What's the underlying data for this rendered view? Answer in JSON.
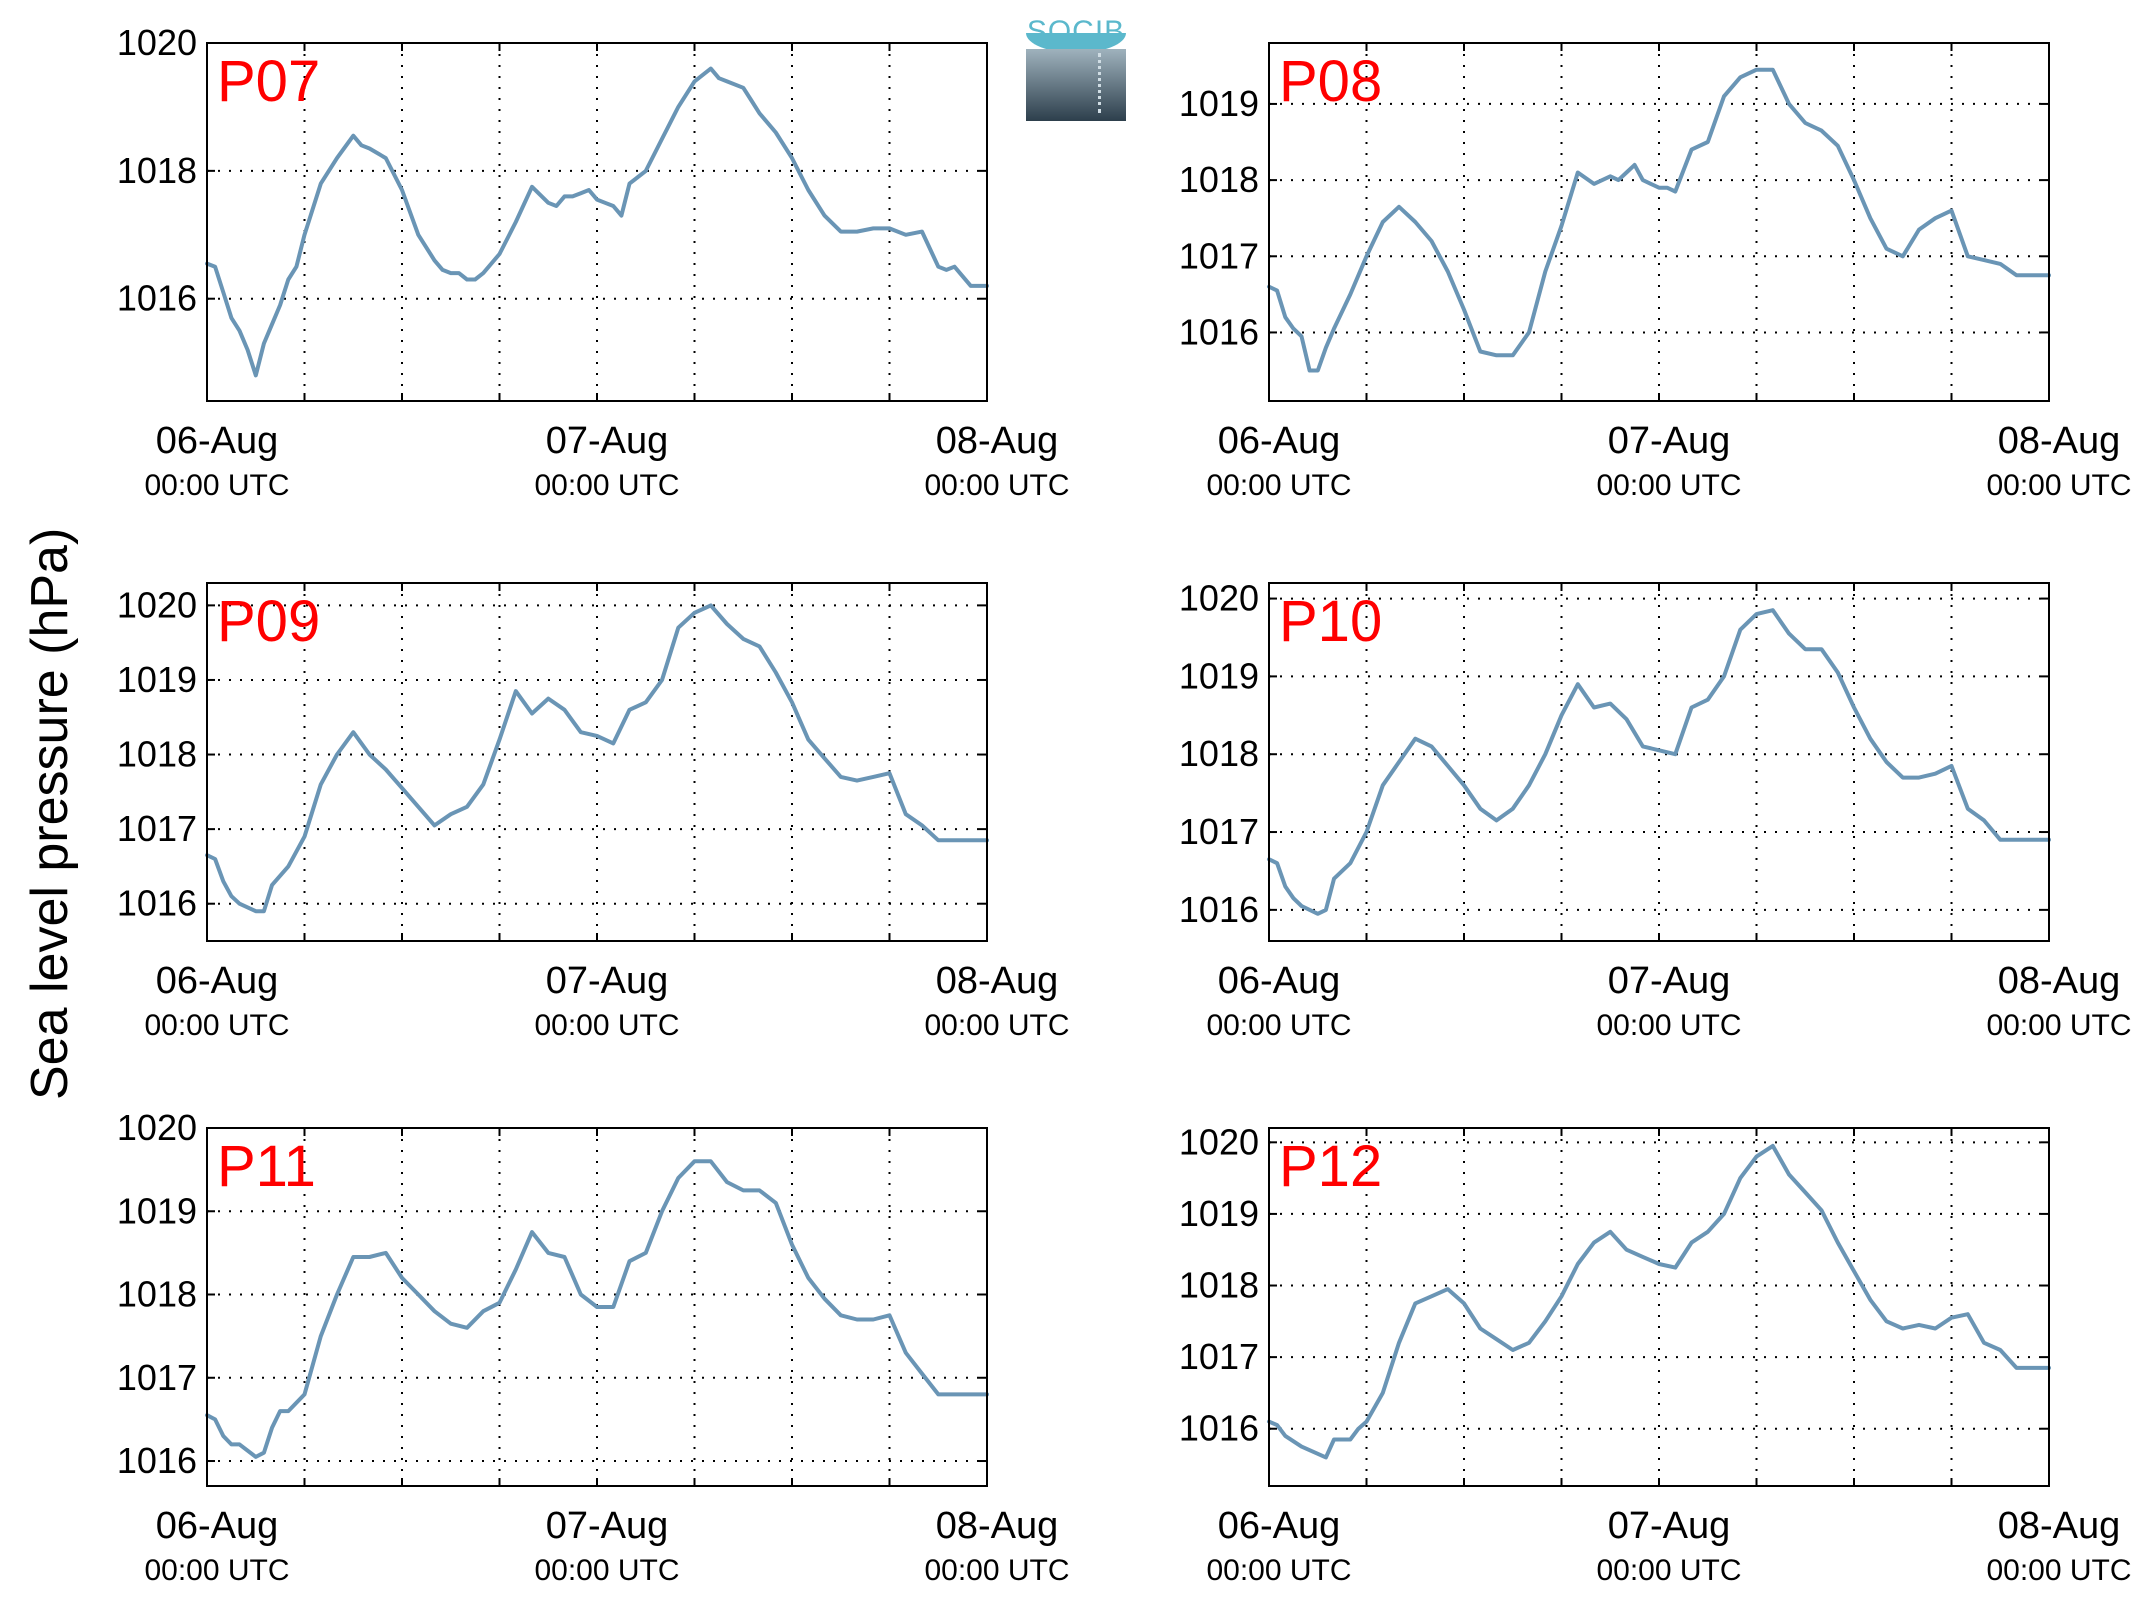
{
  "ylabel": "Sea level pressure (hPa)",
  "logo_text": "SOCIB",
  "colors": {
    "line": "#6a95b5",
    "panel_label": "#ff0000",
    "grid": "#000000"
  },
  "chart_data": [
    {
      "type": "line",
      "label": "P07",
      "xlim": [
        0,
        48
      ],
      "ylim": [
        1014.4,
        1020
      ],
      "yticks": [
        1016,
        1018,
        1020
      ],
      "xticks": [
        {
          "major": "06-Aug",
          "minor": "00:00 UTC"
        },
        {
          "major": "07-Aug",
          "minor": "00:00 UTC"
        },
        {
          "major": "08-Aug",
          "minor": "00:00 UTC"
        }
      ],
      "x": [
        0,
        0.5,
        1,
        1.5,
        2,
        2.5,
        3,
        3.5,
        4,
        4.5,
        5,
        5.5,
        6,
        7,
        8,
        9,
        9.5,
        10,
        11,
        12,
        13,
        14,
        14.5,
        15,
        15.5,
        16,
        16.5,
        17,
        18,
        19,
        20,
        21,
        21.5,
        22,
        22.5,
        23,
        23.5,
        24,
        24.5,
        25,
        25.5,
        26,
        27,
        28,
        29,
        30,
        31,
        31.5,
        32,
        33,
        33.5,
        34,
        35,
        36,
        37,
        38,
        39,
        40,
        41,
        42,
        43,
        44,
        45,
        45.5,
        46,
        47,
        48
      ],
      "values": [
        1016.55,
        1016.5,
        1016.1,
        1015.7,
        1015.5,
        1015.2,
        1014.8,
        1015.3,
        1015.6,
        1015.9,
        1016.3,
        1016.5,
        1017.0,
        1017.8,
        1018.2,
        1018.55,
        1018.4,
        1018.35,
        1018.2,
        1017.7,
        1017.0,
        1016.6,
        1016.45,
        1016.4,
        1016.4,
        1016.3,
        1016.3,
        1016.4,
        1016.7,
        1017.2,
        1017.75,
        1017.5,
        1017.45,
        1017.6,
        1017.6,
        1017.65,
        1017.7,
        1017.55,
        1017.5,
        1017.45,
        1017.3,
        1017.8,
        1018.0,
        1018.5,
        1019.0,
        1019.4,
        1019.6,
        1019.45,
        1019.4,
        1019.3,
        1019.1,
        1018.9,
        1018.6,
        1018.2,
        1017.7,
        1017.3,
        1017.05,
        1017.05,
        1017.1,
        1017.1,
        1017.0,
        1017.05,
        1016.5,
        1016.45,
        1016.5,
        1016.2,
        1016.2
      ]
    },
    {
      "type": "line",
      "label": "P08",
      "xlim": [
        0,
        48
      ],
      "ylim": [
        1015.1,
        1019.8
      ],
      "yticks": [
        1016,
        1017,
        1018,
        1019
      ],
      "xticks": [
        {
          "major": "06-Aug",
          "minor": "00:00 UTC"
        },
        {
          "major": "07-Aug",
          "minor": "00:00 UTC"
        },
        {
          "major": "08-Aug",
          "minor": "00:00 UTC"
        }
      ],
      "x": [
        0,
        0.5,
        1,
        1.5,
        2,
        2.5,
        3,
        3.5,
        4,
        5,
        6,
        7,
        8,
        9,
        10,
        11,
        12,
        13,
        14,
        15,
        16,
        17,
        18,
        19,
        20,
        21,
        21.5,
        22,
        22.5,
        23,
        23.5,
        24,
        24.5,
        25,
        26,
        27,
        28,
        29,
        30,
        31,
        32,
        33,
        34,
        35,
        36,
        37,
        38,
        39,
        40,
        41,
        42,
        43,
        44,
        45,
        46,
        47,
        48
      ],
      "values": [
        1016.6,
        1016.55,
        1016.2,
        1016.05,
        1015.95,
        1015.5,
        1015.5,
        1015.8,
        1016.05,
        1016.5,
        1017.0,
        1017.45,
        1017.65,
        1017.45,
        1017.2,
        1016.8,
        1016.3,
        1015.75,
        1015.7,
        1015.7,
        1016.0,
        1016.8,
        1017.4,
        1018.1,
        1017.95,
        1018.05,
        1018.0,
        1018.1,
        1018.2,
        1018.0,
        1017.95,
        1017.9,
        1017.9,
        1017.85,
        1018.4,
        1018.5,
        1019.1,
        1019.35,
        1019.45,
        1019.45,
        1019.0,
        1018.75,
        1018.65,
        1018.45,
        1018.0,
        1017.5,
        1017.1,
        1017.0,
        1017.35,
        1017.5,
        1017.6,
        1017.0,
        1016.95,
        1016.9,
        1016.75,
        1016.75,
        1016.75
      ]
    },
    {
      "type": "line",
      "label": "P09",
      "xlim": [
        0,
        48
      ],
      "ylim": [
        1015.5,
        1020.3
      ],
      "yticks": [
        1016,
        1017,
        1018,
        1019,
        1020
      ],
      "xticks": [
        {
          "major": "06-Aug",
          "minor": "00:00 UTC"
        },
        {
          "major": "07-Aug",
          "minor": "00:00 UTC"
        },
        {
          "major": "08-Aug",
          "minor": "00:00 UTC"
        }
      ],
      "x": [
        0,
        0.5,
        1,
        1.5,
        2,
        3,
        3.5,
        4,
        5,
        6,
        7,
        8,
        9,
        10,
        11,
        12,
        13,
        14,
        15,
        16,
        17,
        18,
        19,
        20,
        21,
        22,
        23,
        24,
        25,
        26,
        27,
        28,
        29,
        30,
        31,
        32,
        33,
        34,
        35,
        36,
        37,
        38,
        39,
        40,
        41,
        42,
        43,
        44,
        45,
        46,
        47,
        48
      ],
      "values": [
        1016.65,
        1016.6,
        1016.3,
        1016.1,
        1016.0,
        1015.9,
        1015.9,
        1016.25,
        1016.5,
        1016.9,
        1017.6,
        1018.0,
        1018.3,
        1018.0,
        1017.8,
        1017.55,
        1017.3,
        1017.05,
        1017.2,
        1017.3,
        1017.6,
        1018.2,
        1018.85,
        1018.55,
        1018.75,
        1018.6,
        1018.3,
        1018.25,
        1018.15,
        1018.6,
        1018.7,
        1019.0,
        1019.7,
        1019.9,
        1020.0,
        1019.75,
        1019.55,
        1019.45,
        1019.1,
        1018.7,
        1018.2,
        1017.95,
        1017.7,
        1017.65,
        1017.7,
        1017.75,
        1017.2,
        1017.05,
        1016.85,
        1016.85,
        1016.85,
        1016.85
      ]
    },
    {
      "type": "line",
      "label": "P10",
      "xlim": [
        0,
        48
      ],
      "ylim": [
        1015.6,
        1020.2
      ],
      "yticks": [
        1016,
        1017,
        1018,
        1019,
        1020
      ],
      "xticks": [
        {
          "major": "06-Aug",
          "minor": "00:00 UTC"
        },
        {
          "major": "07-Aug",
          "minor": "00:00 UTC"
        },
        {
          "major": "08-Aug",
          "minor": "00:00 UTC"
        }
      ],
      "x": [
        0,
        0.5,
        1,
        1.5,
        2,
        3,
        3.5,
        4,
        5,
        6,
        7,
        8,
        9,
        10,
        11,
        12,
        13,
        14,
        15,
        16,
        17,
        18,
        19,
        20,
        21,
        22,
        23,
        24,
        25,
        26,
        27,
        28,
        29,
        30,
        31,
        32,
        33,
        34,
        35,
        36,
        37,
        38,
        39,
        40,
        41,
        42,
        43,
        44,
        45,
        46,
        47,
        48
      ],
      "values": [
        1016.65,
        1016.6,
        1016.3,
        1016.15,
        1016.05,
        1015.95,
        1016.0,
        1016.4,
        1016.6,
        1017.0,
        1017.6,
        1017.9,
        1018.2,
        1018.1,
        1017.85,
        1017.6,
        1017.3,
        1017.15,
        1017.3,
        1017.6,
        1018.0,
        1018.5,
        1018.9,
        1018.6,
        1018.65,
        1018.45,
        1018.1,
        1018.05,
        1018.0,
        1018.6,
        1018.7,
        1019.0,
        1019.6,
        1019.8,
        1019.85,
        1019.55,
        1019.35,
        1019.35,
        1019.05,
        1018.6,
        1018.2,
        1017.9,
        1017.7,
        1017.7,
        1017.75,
        1017.85,
        1017.3,
        1017.15,
        1016.9,
        1016.9,
        1016.9,
        1016.9
      ]
    },
    {
      "type": "line",
      "label": "P11",
      "xlim": [
        0,
        48
      ],
      "ylim": [
        1015.7,
        1020
      ],
      "yticks": [
        1016,
        1017,
        1018,
        1019,
        1020
      ],
      "xticks": [
        {
          "major": "06-Aug",
          "minor": "00:00 UTC"
        },
        {
          "major": "07-Aug",
          "minor": "00:00 UTC"
        },
        {
          "major": "08-Aug",
          "minor": "00:00 UTC"
        }
      ],
      "x": [
        0,
        0.5,
        1,
        1.5,
        2,
        3,
        3.5,
        4,
        4.5,
        5,
        6,
        7,
        8,
        9,
        10,
        11,
        12,
        13,
        14,
        15,
        16,
        17,
        18,
        19,
        20,
        21,
        22,
        23,
        24,
        25,
        26,
        27,
        28,
        29,
        30,
        31,
        32,
        33,
        34,
        35,
        36,
        37,
        38,
        39,
        40,
        41,
        42,
        43,
        44,
        45,
        46,
        47,
        48
      ],
      "values": [
        1016.55,
        1016.5,
        1016.3,
        1016.2,
        1016.2,
        1016.05,
        1016.1,
        1016.4,
        1016.6,
        1016.6,
        1016.8,
        1017.5,
        1018.0,
        1018.45,
        1018.45,
        1018.5,
        1018.2,
        1018.0,
        1017.8,
        1017.65,
        1017.6,
        1017.8,
        1017.9,
        1018.3,
        1018.75,
        1018.5,
        1018.45,
        1018.0,
        1017.85,
        1017.85,
        1018.4,
        1018.5,
        1019.0,
        1019.4,
        1019.6,
        1019.6,
        1019.35,
        1019.25,
        1019.25,
        1019.1,
        1018.6,
        1018.2,
        1017.95,
        1017.75,
        1017.7,
        1017.7,
        1017.75,
        1017.3,
        1017.05,
        1016.8,
        1016.8,
        1016.8,
        1016.8
      ]
    },
    {
      "type": "line",
      "label": "P12",
      "xlim": [
        0,
        48
      ],
      "ylim": [
        1015.2,
        1020.2
      ],
      "yticks": [
        1016,
        1017,
        1018,
        1019,
        1020
      ],
      "xticks": [
        {
          "major": "06-Aug",
          "minor": "00:00 UTC"
        },
        {
          "major": "07-Aug",
          "minor": "00:00 UTC"
        },
        {
          "major": "08-Aug",
          "minor": "00:00 UTC"
        }
      ],
      "x": [
        0,
        0.5,
        1,
        2,
        3,
        3.5,
        4,
        4.5,
        5,
        5.5,
        6,
        7,
        8,
        9,
        10,
        11,
        12,
        13,
        14,
        15,
        16,
        17,
        18,
        19,
        20,
        21,
        22,
        23,
        24,
        25,
        26,
        27,
        28,
        29,
        30,
        31,
        32,
        33,
        34,
        35,
        36,
        37,
        38,
        39,
        40,
        41,
        42,
        43,
        44,
        45,
        46,
        47,
        48
      ],
      "values": [
        1016.1,
        1016.05,
        1015.9,
        1015.75,
        1015.65,
        1015.6,
        1015.85,
        1015.85,
        1015.85,
        1016.0,
        1016.1,
        1016.5,
        1017.2,
        1017.75,
        1017.85,
        1017.95,
        1017.75,
        1017.4,
        1017.25,
        1017.1,
        1017.2,
        1017.5,
        1017.85,
        1018.3,
        1018.6,
        1018.75,
        1018.5,
        1018.4,
        1018.3,
        1018.25,
        1018.6,
        1018.75,
        1019.0,
        1019.5,
        1019.8,
        1019.95,
        1019.55,
        1019.3,
        1019.05,
        1018.6,
        1018.2,
        1017.8,
        1017.5,
        1017.4,
        1017.45,
        1017.4,
        1017.55,
        1017.6,
        1017.2,
        1017.1,
        1016.85,
        1016.85,
        1016.85
      ]
    }
  ]
}
